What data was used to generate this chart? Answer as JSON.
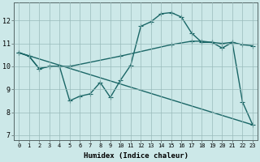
{
  "xlabel": "Humidex (Indice chaleur)",
  "bg_color": "#cce8e8",
  "grid_color": "#99bbbb",
  "line_color": "#1a6666",
  "xlim": [
    -0.5,
    23.5
  ],
  "ylim": [
    6.8,
    12.8
  ],
  "xticks": [
    0,
    1,
    2,
    3,
    4,
    5,
    6,
    7,
    8,
    9,
    10,
    11,
    12,
    13,
    14,
    15,
    16,
    17,
    18,
    19,
    20,
    21,
    22,
    23
  ],
  "yticks": [
    7,
    8,
    9,
    10,
    11,
    12
  ],
  "line1_x": [
    0,
    1,
    2,
    3,
    4,
    5,
    6,
    7,
    8,
    9,
    10,
    11,
    12,
    13,
    14,
    15,
    16,
    17,
    18,
    19,
    20,
    21,
    22,
    23
  ],
  "line1_y": [
    10.6,
    10.45,
    9.9,
    10.0,
    10.0,
    8.5,
    8.7,
    8.8,
    9.3,
    8.65,
    9.4,
    10.05,
    11.75,
    11.95,
    12.3,
    12.35,
    12.15,
    11.45,
    11.05,
    11.05,
    10.8,
    11.05,
    8.45,
    7.45
  ],
  "line2_x": [
    0,
    1,
    2,
    3,
    4,
    5,
    10,
    15,
    17,
    18,
    19,
    20,
    21,
    22,
    23
  ],
  "line2_y": [
    10.6,
    10.45,
    9.9,
    10.0,
    10.0,
    10.0,
    10.45,
    10.95,
    11.1,
    11.1,
    11.05,
    11.0,
    11.05,
    10.95,
    10.9
  ],
  "line3_x": [
    0,
    23
  ],
  "line3_y": [
    10.6,
    7.45
  ],
  "marker_size": 3,
  "line_width": 1.0
}
